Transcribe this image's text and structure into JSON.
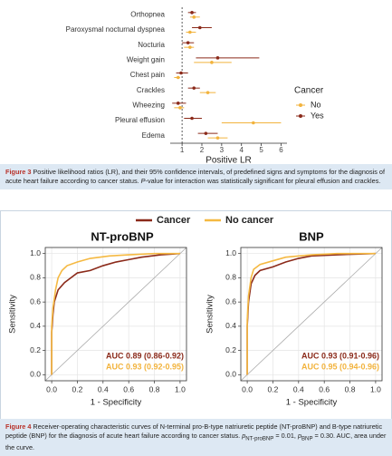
{
  "chart_data": [
    {
      "type": "forest",
      "categories": [
        "Orthopnea",
        "Paroxysmal nocturnal dyspnea",
        "Nocturia",
        "Weight gain",
        "Chest pain",
        "Crackles",
        "Wheezing",
        "Pleural effusion",
        "Edema"
      ],
      "series": [
        {
          "name": "No",
          "color": "#f2b33d",
          "values": [
            1.6,
            1.4,
            1.4,
            2.5,
            0.8,
            2.3,
            0.9,
            4.6,
            2.8
          ],
          "lower": [
            1.4,
            1.2,
            1.1,
            1.6,
            0.6,
            1.9,
            0.6,
            3.0,
            2.3
          ],
          "upper": [
            1.9,
            1.7,
            1.6,
            3.5,
            0.9,
            2.7,
            1.1,
            6.0,
            3.3
          ]
        },
        {
          "name": "Yes",
          "color": "#8b2a1a",
          "values": [
            1.5,
            1.9,
            1.3,
            2.8,
            0.95,
            1.6,
            0.8,
            1.5,
            2.2
          ],
          "lower": [
            1.3,
            1.5,
            1.0,
            1.7,
            0.7,
            1.3,
            0.5,
            1.1,
            1.8
          ],
          "upper": [
            1.7,
            2.5,
            1.6,
            4.9,
            1.3,
            1.9,
            1.2,
            2.0,
            2.8
          ]
        }
      ],
      "xlabel": "Positive LR",
      "xlim": [
        0.4,
        6.3
      ],
      "xticks": [
        1,
        2,
        3,
        4,
        5,
        6
      ],
      "reference_line": 1,
      "legend_title": "Cancer",
      "legend": "right"
    },
    {
      "type": "line",
      "title": "NT-proBNP",
      "xlabel": "1 - Specificity",
      "ylabel": "Sensitivity",
      "xlim": [
        -0.05,
        1.05
      ],
      "ylim": [
        -0.05,
        1.05
      ],
      "xticks": [
        {
          "value": 0,
          "label": "0.0"
        },
        0.2,
        0.4,
        0.6,
        0.8,
        {
          "value": 1,
          "label": "1.0"
        }
      ],
      "yticks": [
        {
          "value": 0,
          "label": "0.0"
        },
        0.2,
        0.4,
        0.6,
        0.8,
        {
          "value": 1,
          "label": "1.0"
        }
      ],
      "grid": true,
      "legend": "top",
      "series": [
        {
          "name": "Cancer",
          "color": "#8b2a1a",
          "x": [
            0,
            0,
            0.01,
            0.02,
            0.05,
            0.1,
            0.15,
            0.2,
            0.3,
            0.4,
            0.5,
            0.6,
            0.7,
            0.85,
            1
          ],
          "values": [
            0,
            0.35,
            0.5,
            0.6,
            0.7,
            0.76,
            0.8,
            0.84,
            0.86,
            0.9,
            0.93,
            0.95,
            0.97,
            0.99,
            1
          ]
        },
        {
          "name": "No cancer",
          "color": "#f5b942",
          "x": [
            0,
            0,
            0.01,
            0.03,
            0.05,
            0.08,
            0.12,
            0.2,
            0.3,
            0.45,
            0.6,
            0.8,
            1
          ],
          "values": [
            0,
            0.4,
            0.55,
            0.7,
            0.8,
            0.86,
            0.9,
            0.93,
            0.96,
            0.98,
            0.99,
            1,
            1
          ]
        }
      ],
      "annotations": [
        {
          "text": "AUC 0.89 (0.86-0.92)",
          "color": "#8b2a1a"
        },
        {
          "text": "AUC 0.93 (0.92-0.95)",
          "color": "#f2b33d"
        }
      ]
    },
    {
      "type": "line",
      "title": "BNP",
      "xlabel": "1 - Specificity",
      "ylabel": "Sensitivity",
      "xlim": [
        -0.05,
        1.05
      ],
      "ylim": [
        -0.05,
        1.05
      ],
      "xticks": [
        {
          "value": 0,
          "label": "0.0"
        },
        0.2,
        0.4,
        0.6,
        0.8,
        {
          "value": 1,
          "label": "1.0"
        }
      ],
      "yticks": [
        {
          "value": 0,
          "label": "0.0"
        },
        0.2,
        0.4,
        0.6,
        0.8,
        {
          "value": 1,
          "label": "1.0"
        }
      ],
      "grid": true,
      "series": [
        {
          "color": "#8b2a1a",
          "x": [
            0,
            0,
            0.01,
            0.03,
            0.06,
            0.1,
            0.2,
            0.3,
            0.4,
            0.5,
            0.7,
            1
          ],
          "values": [
            0,
            0.4,
            0.6,
            0.75,
            0.82,
            0.86,
            0.89,
            0.93,
            0.96,
            0.98,
            0.99,
            1
          ]
        },
        {
          "color": "#f5b942",
          "x": [
            0,
            0,
            0.01,
            0.03,
            0.05,
            0.1,
            0.2,
            0.3,
            0.5,
            0.7,
            1
          ],
          "values": [
            0,
            0.45,
            0.65,
            0.8,
            0.87,
            0.91,
            0.94,
            0.97,
            0.99,
            1,
            1
          ]
        }
      ],
      "annotations": [
        {
          "text": "AUC 0.93 (0.91-0.96)",
          "color": "#8b2a1a"
        },
        {
          "text": "AUC 0.95 (0.94-0.96)",
          "color": "#f2b33d"
        }
      ]
    }
  ],
  "figure3_caption": {
    "label": "Figure 3",
    "text": [
      " Positive likelihood ratios (LR), and their 95% confidence intervals, of predefined signs and symptoms for the diagnosis of acute heart failure according to cancer status. ",
      "P",
      "-value for interaction was statistically significant for pleural effusion and crackles."
    ]
  },
  "figure4_caption": {
    "label": "Figure 4",
    "text": [
      " Receiver-operating characteristic curves of N-terminal pro-B-type natriuretic peptide (NT-proBNP) and B-type natriuretic peptide (BNP) for the diagnosis of acute heart failure according to cancer status. ",
      "p",
      "NT-proBNP",
      " = 0.01, ",
      "p",
      "BNP",
      " = 0.30. AUC, area under the curve."
    ]
  }
}
